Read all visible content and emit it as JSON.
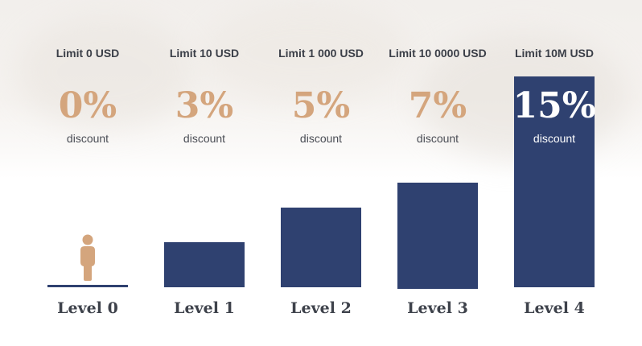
{
  "colors": {
    "bar": "#2f4170",
    "accent": "#d4a57d",
    "text": "#3b3f48"
  },
  "tiers": [
    {
      "limit": "Limit 0 USD",
      "percent": "0%",
      "discount": "discount",
      "level": "Level 0",
      "icon": "person-icon"
    },
    {
      "limit": "Limit 10 USD",
      "percent": "3%",
      "discount": "discount",
      "level": "Level 1"
    },
    {
      "limit": "Limit 1 000 USD",
      "percent": "5%",
      "discount": "discount",
      "level": "Level 2"
    },
    {
      "limit": "Limit 10 0000 USD",
      "percent": "7%",
      "discount": "discount",
      "level": "Level 3"
    },
    {
      "limit": "Limit 10M USD",
      "percent": "15%",
      "discount": "discount",
      "level": "Level 4",
      "active": true
    }
  ]
}
